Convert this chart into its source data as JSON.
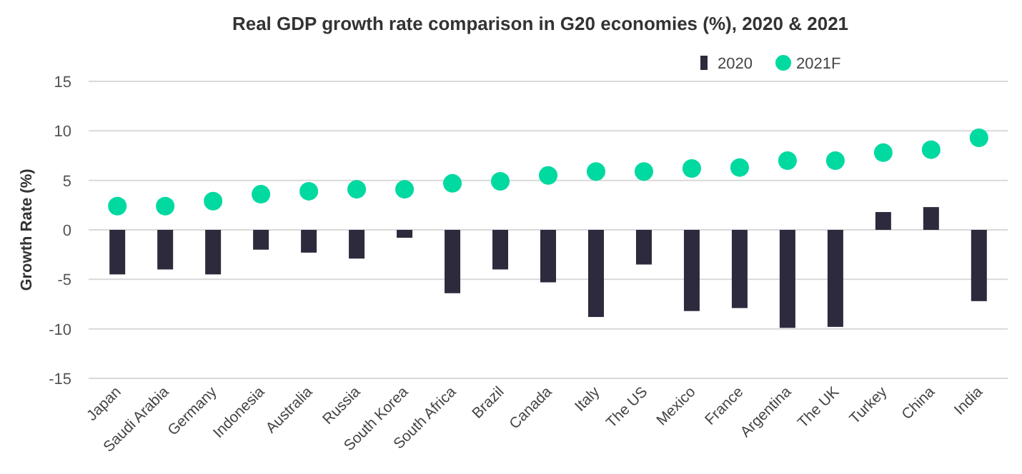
{
  "chart_data": {
    "type": "bar",
    "title": "Real GDP growth rate comparison in G20 economies (%), 2020 & 2021",
    "ylabel": "Growth Rate (%)",
    "categories": [
      "Japan",
      "Saudi Arabia",
      "Germany",
      "Indonesia",
      "Australia",
      "Russia",
      "South Korea",
      "South Africa",
      "Brazil",
      "Canada",
      "Italy",
      "The US",
      "Mexico",
      "France",
      "Argentina",
      "The UK",
      "Turkey",
      "China",
      "India"
    ],
    "series": [
      {
        "name": "2020",
        "color": "#2e2a3d",
        "values": [
          -4.5,
          -4.0,
          -4.5,
          -2.0,
          -2.3,
          -2.9,
          -0.8,
          -6.4,
          -4.0,
          -5.3,
          -8.8,
          -3.5,
          -8.2,
          -7.9,
          -9.9,
          -9.8,
          1.8,
          2.3,
          -7.2
        ]
      },
      {
        "name": "2021F",
        "type": "scatter",
        "marker": "circle",
        "color": "#00d9a0",
        "values": [
          2.4,
          2.4,
          2.9,
          3.6,
          3.9,
          4.1,
          4.1,
          4.7,
          4.9,
          5.5,
          5.9,
          5.9,
          6.2,
          6.3,
          7.0,
          7.0,
          7.8,
          8.1,
          9.3
        ]
      }
    ],
    "ylim": [
      -15,
      15
    ],
    "yticks": [
      -15,
      -10,
      -5,
      0,
      5,
      10,
      15
    ],
    "grid": "y",
    "legend": "top right"
  }
}
